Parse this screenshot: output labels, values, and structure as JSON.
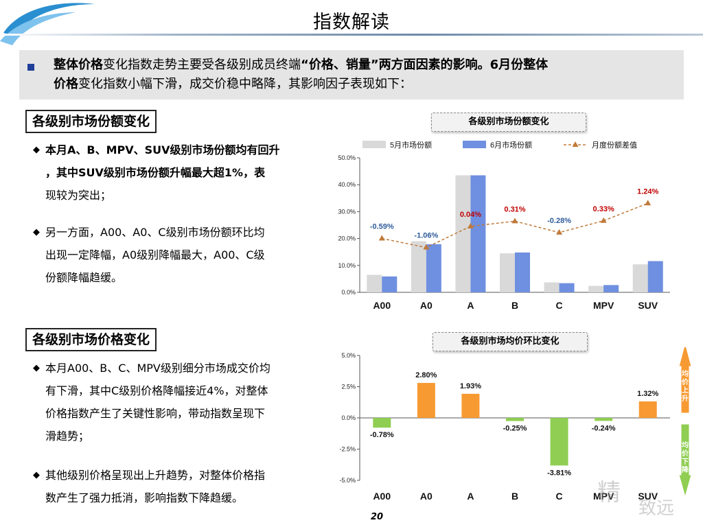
{
  "header": {
    "title": "指数解读"
  },
  "summary": {
    "p1_bold": "整体价格",
    "p1_text": "变化指数走势主要受各级别成员终端",
    "p1_quote": "“价格、销量”两方面因素的影响。6月份整体",
    "p2_bold": "价格",
    "p2_text": "变化指数小幅下滑，成交价稳中略降，其影响因子表现如下："
  },
  "section1": {
    "heading": "各级别市场份额变化",
    "bullets": [
      {
        "lines": [
          "本月A、B、MPV、SUV级别市场份额均有回升",
          "，其中SUV级别市场份额升幅最大超1%，表",
          "现较为突出；"
        ]
      },
      {
        "lines": [
          "另一方面，A00、A0、C级别市场份额环比均",
          "出现一定降幅，A0级别降幅最大，A00、C级",
          "份额降幅趋缓。"
        ]
      }
    ]
  },
  "section2": {
    "heading": "各级别市场价格变化",
    "bullets": [
      {
        "lines": [
          "本月A00、B、C、MPV级别细分市场成交价均",
          "有下滑，其中C级别价格降幅接近4%，对整体",
          "价格指数产生了关键性影响，带动指数呈现下",
          "滑趋势；"
        ]
      },
      {
        "lines": [
          "其他级别价格呈现出上升趋势，对整体价格指",
          "数产生了强力抵消，影响指数下降趋缓。"
        ]
      }
    ]
  },
  "colors": {
    "may": "#d9d9d9",
    "june": "#6f90e0",
    "diff_line": "#c07a3a",
    "pos_label": "#c00000",
    "neg_label": "#2e5b9a",
    "up_bar": "#f79a32",
    "down_bar": "#8fce52"
  },
  "chart_data": [
    {
      "type": "bar",
      "title": "各级别市场份额变化",
      "categories": [
        "A00",
        "A0",
        "A",
        "B",
        "C",
        "MPV",
        "SUV"
      ],
      "series": [
        {
          "name": "5月市场份额",
          "values": [
            6.5,
            19.0,
            43.5,
            14.5,
            3.7,
            2.4,
            10.4
          ]
        },
        {
          "name": "6月市场份额",
          "values": [
            5.9,
            17.9,
            43.5,
            14.8,
            3.4,
            2.7,
            11.6
          ]
        }
      ],
      "line_series": {
        "name": "月度份额差值",
        "values": [
          -0.59,
          -1.06,
          0.04,
          0.31,
          -0.28,
          0.33,
          1.24
        ],
        "labels": [
          "-0.59%",
          "-1.06%",
          "0.04%",
          "0.31%",
          "-0.28%",
          "0.33%",
          "1.24%"
        ]
      },
      "yticks": [
        "0.0%",
        "10.0%",
        "20.0%",
        "30.0%",
        "40.0%",
        "50.0%"
      ],
      "ylim": [
        0,
        50
      ],
      "legend": "top"
    },
    {
      "type": "bar",
      "title": "各级别市场均价环比变化",
      "categories": [
        "A00",
        "A0",
        "A",
        "B",
        "C",
        "MPV",
        "SUV"
      ],
      "values": [
        -0.78,
        2.8,
        1.93,
        -0.25,
        -3.81,
        -0.24,
        1.32
      ],
      "labels": [
        "-0.78%",
        "2.80%",
        "1.93%",
        "-0.25%",
        "-3.81%",
        "-0.24%",
        "1.32%"
      ],
      "yticks": [
        "5.0%",
        "2.5%",
        "0.0%",
        "-2.5%",
        "-5.0%"
      ],
      "ylim": [
        -5,
        5
      ],
      "side_labels": {
        "up": "均价上升",
        "down": "均价下降"
      }
    }
  ],
  "footer": {
    "page_number": "20",
    "watermark_a": "精",
    "watermark_b": "致远"
  }
}
